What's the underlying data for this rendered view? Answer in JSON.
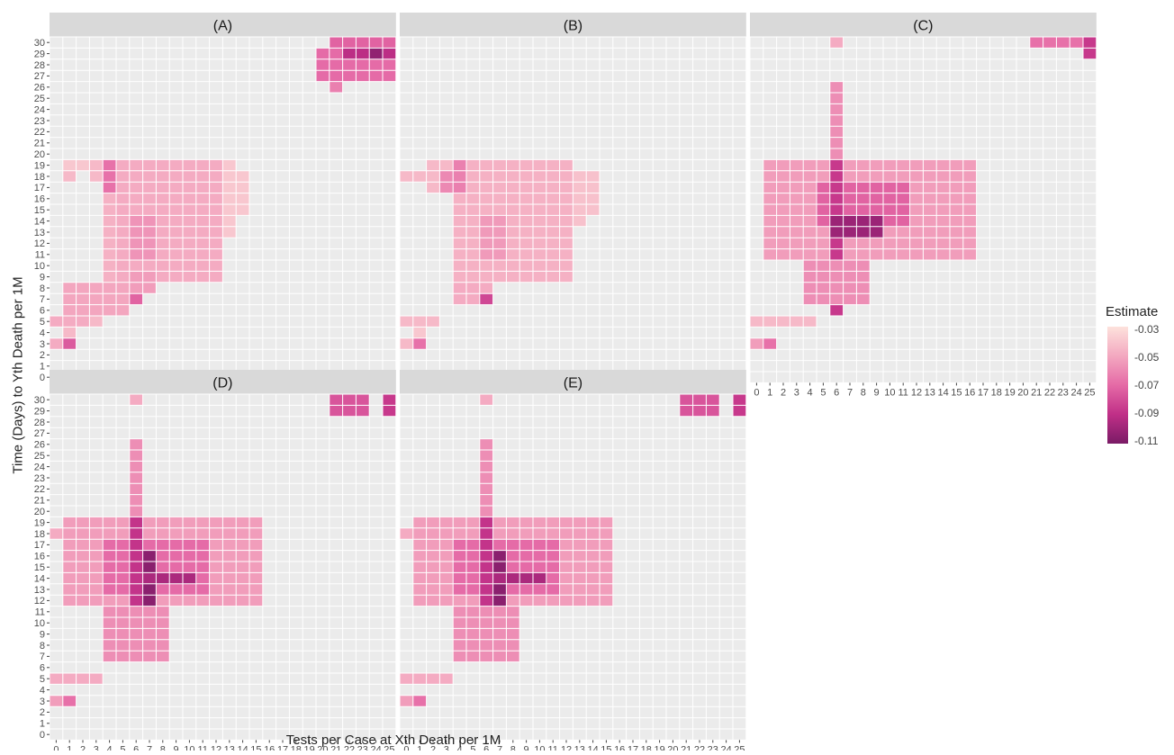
{
  "chart_data": {
    "type": "heatmap",
    "xlabel": "Tests per Case at Xth Death per 1M",
    "ylabel": "Time (Days) to Yth Death per 1M",
    "x_range": [
      0,
      25
    ],
    "y_range": [
      0,
      30
    ],
    "x_ticks": [
      "0",
      "1",
      "2",
      "3",
      "4",
      "5",
      "6",
      "7",
      "8",
      "9",
      "10",
      "11",
      "12",
      "13",
      "14",
      "15",
      "16",
      "17",
      "18",
      "19",
      "20",
      "21",
      "22",
      "23",
      "24",
      "25"
    ],
    "y_ticks": [
      "0",
      "1",
      "2",
      "3",
      "4",
      "5",
      "6",
      "7",
      "8",
      "9",
      "10",
      "11",
      "12",
      "13",
      "14",
      "15",
      "16",
      "17",
      "18",
      "19",
      "20",
      "21",
      "22",
      "23",
      "24",
      "25",
      "26",
      "27",
      "28",
      "29",
      "30"
    ],
    "legend": {
      "title": "Estimate",
      "labels": [
        "-0.03",
        "-0.05",
        "-0.07",
        "-0.09",
        "-0.11"
      ],
      "range": [
        -0.115,
        -0.03
      ],
      "placement": "right"
    },
    "panels": [
      {
        "label": "(A)",
        "regions": [
          {
            "x": [
              1,
              2
            ],
            "y": [
              19,
              19
            ],
            "v": -0.04
          },
          {
            "x": [
              1,
              1
            ],
            "y": [
              18,
              18
            ],
            "v": -0.045
          },
          {
            "x": [
              3,
              3
            ],
            "y": [
              18,
              19
            ],
            "v": -0.045
          },
          {
            "x": [
              4,
              4
            ],
            "y": [
              17,
              19
            ],
            "v": -0.07
          },
          {
            "x": [
              4,
              4
            ],
            "y": [
              9,
              16
            ],
            "v": -0.048
          },
          {
            "x": [
              5,
              12
            ],
            "y": [
              9,
              19
            ],
            "v": -0.05
          },
          {
            "x": [
              6,
              7
            ],
            "y": [
              11,
              14
            ],
            "v": -0.058
          },
          {
            "x": [
              13,
              13
            ],
            "y": [
              13,
              19
            ],
            "v": -0.04
          },
          {
            "x": [
              14,
              14
            ],
            "y": [
              15,
              18
            ],
            "v": -0.04
          },
          {
            "x": [
              1,
              5
            ],
            "y": [
              6,
              8
            ],
            "v": -0.052
          },
          {
            "x": [
              6,
              6
            ],
            "y": [
              7,
              7
            ],
            "v": -0.075
          },
          {
            "x": [
              6,
              7
            ],
            "y": [
              8,
              9
            ],
            "v": -0.055
          },
          {
            "x": [
              0,
              2
            ],
            "y": [
              5,
              5
            ],
            "v": -0.05
          },
          {
            "x": [
              3,
              3
            ],
            "y": [
              5,
              5
            ],
            "v": -0.045
          },
          {
            "x": [
              1,
              1
            ],
            "y": [
              4,
              4
            ],
            "v": -0.045
          },
          {
            "x": [
              0,
              0
            ],
            "y": [
              3,
              3
            ],
            "v": -0.05
          },
          {
            "x": [
              1,
              1
            ],
            "y": [
              3,
              3
            ],
            "v": -0.078
          },
          {
            "x": [
              20,
              25
            ],
            "y": [
              27,
              29
            ],
            "v": -0.072
          },
          {
            "x": [
              21,
              25
            ],
            "y": [
              30,
              30
            ],
            "v": -0.075
          },
          {
            "x": [
              22,
              25
            ],
            "y": [
              29,
              29
            ],
            "v": -0.095
          },
          {
            "x": [
              24,
              24
            ],
            "y": [
              29,
              29
            ],
            "v": -0.108
          },
          {
            "x": [
              21,
              21
            ],
            "y": [
              26,
              26
            ],
            "v": -0.065
          }
        ]
      },
      {
        "label": "(B)",
        "regions": [
          {
            "x": [
              0,
              1
            ],
            "y": [
              18,
              18
            ],
            "v": -0.045
          },
          {
            "x": [
              2,
              3
            ],
            "y": [
              17,
              19
            ],
            "v": -0.045
          },
          {
            "x": [
              3,
              3
            ],
            "y": [
              17,
              18
            ],
            "v": -0.062
          },
          {
            "x": [
              4,
              12
            ],
            "y": [
              9,
              19
            ],
            "v": -0.048
          },
          {
            "x": [
              4,
              4
            ],
            "y": [
              17,
              19
            ],
            "v": -0.065
          },
          {
            "x": [
              6,
              7
            ],
            "y": [
              11,
              14
            ],
            "v": -0.056
          },
          {
            "x": [
              13,
              13
            ],
            "y": [
              14,
              18
            ],
            "v": -0.042
          },
          {
            "x": [
              14,
              14
            ],
            "y": [
              15,
              18
            ],
            "v": -0.042
          },
          {
            "x": [
              4,
              6
            ],
            "y": [
              7,
              8
            ],
            "v": -0.05
          },
          {
            "x": [
              6,
              6
            ],
            "y": [
              7,
              7
            ],
            "v": -0.085
          },
          {
            "x": [
              0,
              2
            ],
            "y": [
              5,
              5
            ],
            "v": -0.045
          },
          {
            "x": [
              0,
              0
            ],
            "y": [
              3,
              3
            ],
            "v": -0.045
          },
          {
            "x": [
              1,
              1
            ],
            "y": [
              3,
              3
            ],
            "v": -0.07
          },
          {
            "x": [
              1,
              1
            ],
            "y": [
              4,
              4
            ],
            "v": -0.04
          }
        ]
      },
      {
        "label": "(C)",
        "regions": [
          {
            "x": [
              1,
              16
            ],
            "y": [
              11,
              19
            ],
            "v": -0.055
          },
          {
            "x": [
              5,
              11
            ],
            "y": [
              14,
              17
            ],
            "v": -0.075
          },
          {
            "x": [
              6,
              6
            ],
            "y": [
              6,
              19
            ],
            "v": -0.09
          },
          {
            "x": [
              6,
              9
            ],
            "y": [
              13,
              14
            ],
            "v": -0.105
          },
          {
            "x": [
              6,
              6
            ],
            "y": [
              20,
              26
            ],
            "v": -0.06
          },
          {
            "x": [
              6,
              6
            ],
            "y": [
              30,
              30
            ],
            "v": -0.05
          },
          {
            "x": [
              4,
              8
            ],
            "y": [
              7,
              10
            ],
            "v": -0.06
          },
          {
            "x": [
              0,
              4
            ],
            "y": [
              5,
              5
            ],
            "v": -0.045
          },
          {
            "x": [
              0,
              0
            ],
            "y": [
              3,
              3
            ],
            "v": -0.055
          },
          {
            "x": [
              1,
              1
            ],
            "y": [
              3,
              3
            ],
            "v": -0.07
          },
          {
            "x": [
              21,
              24
            ],
            "y": [
              30,
              30
            ],
            "v": -0.07
          },
          {
            "x": [
              25,
              25
            ],
            "y": [
              29,
              30
            ],
            "v": -0.09
          }
        ]
      },
      {
        "label": "(D)",
        "regions": [
          {
            "x": [
              0,
              1
            ],
            "y": [
              18,
              18
            ],
            "v": -0.05
          },
          {
            "x": [
              1,
              15
            ],
            "y": [
              12,
              19
            ],
            "v": -0.055
          },
          {
            "x": [
              4,
              11
            ],
            "y": [
              13,
              17
            ],
            "v": -0.072
          },
          {
            "x": [
              6,
              6
            ],
            "y": [
              7,
              19
            ],
            "v": -0.092
          },
          {
            "x": [
              7,
              7
            ],
            "y": [
              11,
              16
            ],
            "v": -0.11
          },
          {
            "x": [
              7,
              10
            ],
            "y": [
              14,
              14
            ],
            "v": -0.1
          },
          {
            "x": [
              6,
              6
            ],
            "y": [
              20,
              26
            ],
            "v": -0.06
          },
          {
            "x": [
              6,
              6
            ],
            "y": [
              30,
              30
            ],
            "v": -0.05
          },
          {
            "x": [
              4,
              8
            ],
            "y": [
              7,
              11
            ],
            "v": -0.06
          },
          {
            "x": [
              0,
              3
            ],
            "y": [
              5,
              5
            ],
            "v": -0.05
          },
          {
            "x": [
              0,
              0
            ],
            "y": [
              3,
              3
            ],
            "v": -0.055
          },
          {
            "x": [
              1,
              1
            ],
            "y": [
              3,
              3
            ],
            "v": -0.07
          },
          {
            "x": [
              21,
              23
            ],
            "y": [
              29,
              30
            ],
            "v": -0.08
          },
          {
            "x": [
              25,
              25
            ],
            "y": [
              29,
              30
            ],
            "v": -0.09
          }
        ]
      },
      {
        "label": "(E)",
        "regions": [
          {
            "x": [
              0,
              1
            ],
            "y": [
              18,
              18
            ],
            "v": -0.05
          },
          {
            "x": [
              1,
              15
            ],
            "y": [
              12,
              19
            ],
            "v": -0.055
          },
          {
            "x": [
              4,
              11
            ],
            "y": [
              13,
              17
            ],
            "v": -0.072
          },
          {
            "x": [
              6,
              6
            ],
            "y": [
              7,
              19
            ],
            "v": -0.092
          },
          {
            "x": [
              7,
              7
            ],
            "y": [
              11,
              16
            ],
            "v": -0.11
          },
          {
            "x": [
              7,
              10
            ],
            "y": [
              14,
              14
            ],
            "v": -0.1
          },
          {
            "x": [
              6,
              6
            ],
            "y": [
              20,
              26
            ],
            "v": -0.06
          },
          {
            "x": [
              6,
              6
            ],
            "y": [
              30,
              30
            ],
            "v": -0.05
          },
          {
            "x": [
              4,
              8
            ],
            "y": [
              7,
              11
            ],
            "v": -0.06
          },
          {
            "x": [
              0,
              3
            ],
            "y": [
              5,
              5
            ],
            "v": -0.05
          },
          {
            "x": [
              0,
              0
            ],
            "y": [
              3,
              3
            ],
            "v": -0.055
          },
          {
            "x": [
              1,
              1
            ],
            "y": [
              3,
              3
            ],
            "v": -0.07
          },
          {
            "x": [
              21,
              23
            ],
            "y": [
              29,
              30
            ],
            "v": -0.08
          },
          {
            "x": [
              25,
              25
            ],
            "y": [
              29,
              30
            ],
            "v": -0.09
          }
        ]
      }
    ]
  },
  "colors": {
    "grid_bg": "#ebebeb",
    "strip_bg": "#d9d9d9",
    "low": "#fde2dc",
    "high": "#7a1b66"
  }
}
